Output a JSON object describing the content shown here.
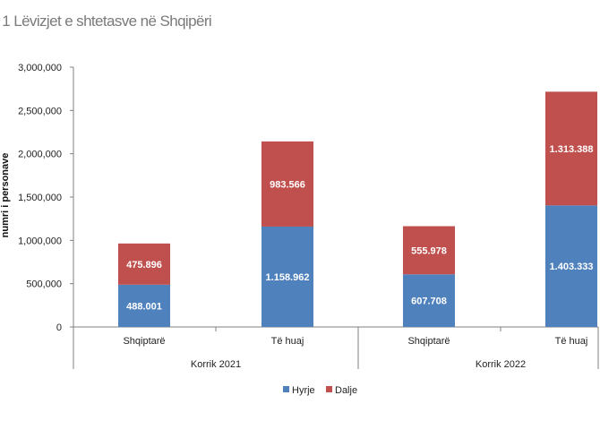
{
  "chart_data": {
    "type": "bar",
    "stacked": true,
    "title": ". 1 Lëvizjet e shtetasve në Shqipëri",
    "ylabel": "numri i personave",
    "ylim": [
      0,
      3000000
    ],
    "yticks": [
      0,
      500000,
      1000000,
      1500000,
      2000000,
      2500000,
      3000000
    ],
    "ytick_labels": [
      "0",
      "500,000",
      "1,000,000",
      "1,500,000",
      "2,000,000",
      "2,500,000",
      "3,000,000"
    ],
    "categories": [
      "Shqiptarë",
      "Të huaj",
      "Shqiptarë",
      "Të huaj"
    ],
    "groups": [
      {
        "label": "Korrik 2021",
        "categories": [
          0,
          1
        ]
      },
      {
        "label": "Korrik 2022",
        "categories": [
          2,
          3
        ]
      }
    ],
    "series": [
      {
        "name": "Hyrje",
        "color": "#4F81BD",
        "values": [
          488001,
          1158962,
          607708,
          1403333
        ],
        "labels": [
          "488.001",
          "1.158.962",
          "607.708",
          "1.403.333"
        ]
      },
      {
        "name": "Dalje",
        "color": "#C0504D",
        "values": [
          475896,
          983566,
          555978,
          1313388
        ],
        "labels": [
          "475.896",
          "983.566",
          "555.978",
          "1.313.388"
        ]
      }
    ],
    "legend": "bottom-center",
    "grid": false
  }
}
